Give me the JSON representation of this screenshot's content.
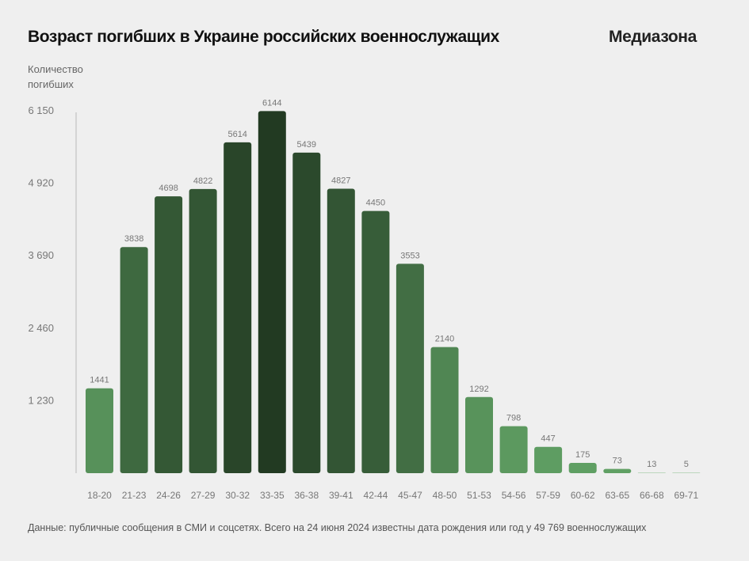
{
  "header": {
    "title": "Возраст погибших в Украине российских военнослужащих",
    "brand": "Медиазона"
  },
  "footer": {
    "note": "Данные: публичные сообщения в СМИ и соцсетях. Всего на 24 июня 2024 известны дата рождения или год у 49 769 военнослужащих"
  },
  "chart_data": {
    "type": "bar",
    "title": "Возраст погибших в Украине российских военнослужащих",
    "xlabel": "",
    "ylabel_lines": [
      "Количество",
      "погибших"
    ],
    "categories": [
      "18-20",
      "21-23",
      "24-26",
      "27-29",
      "30-32",
      "33-35",
      "36-38",
      "39-41",
      "42-44",
      "45-47",
      "48-50",
      "51-53",
      "54-56",
      "57-59",
      "60-62",
      "63-65",
      "66-68",
      "69-71"
    ],
    "values": [
      1441,
      3838,
      4698,
      4822,
      5614,
      6144,
      5439,
      4827,
      4450,
      3553,
      2140,
      1292,
      798,
      447,
      175,
      73,
      13,
      5
    ],
    "value_labels": [
      "1441",
      "3838",
      "4698",
      "4822",
      "5614",
      "6144",
      "5439",
      "4827",
      "4450",
      "3553",
      "2140",
      "1292",
      "798",
      "447",
      "175",
      "73",
      "13",
      "5"
    ],
    "yticks": [
      1230,
      2460,
      3690,
      4920,
      6150
    ],
    "ytick_labels": [
      "1 230",
      "2 460",
      "3 690",
      "4 920",
      "6 150"
    ],
    "ylim": [
      0,
      6150
    ],
    "grid": false,
    "legend": "none",
    "colors": {
      "dark": "#223a22",
      "light": "#60a064",
      "axis": "#cccccc",
      "text": "#777777"
    }
  }
}
